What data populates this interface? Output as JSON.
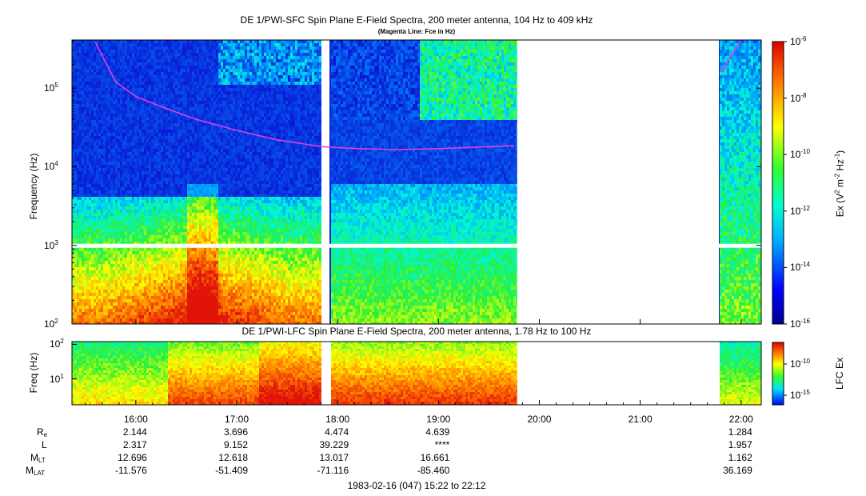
{
  "header": {
    "title": "DE 1/PWI-SFC  Spin Plane E-Field Spectra, 200 meter antenna, 104 Hz to 409 kHz",
    "subtitle": "(Magenta Line: Fce in Hz)"
  },
  "colors": {
    "background_spectrum": "#0a1fd0",
    "gyro_line": "#e040e0",
    "data_gap": "#ffffff"
  },
  "chart_data": [
    {
      "type": "heatmap",
      "title": "DE 1/PWI-SFC  Spin Plane E-Field Spectra, 200 meter antenna, 104 Hz to 409 kHz",
      "subtitle": "(Magenta Line: Fce in Hz)",
      "ylabel": "Frequency (Hz)",
      "yscale": "log",
      "ylim": [
        100,
        409000
      ],
      "yticks": [
        {
          "value": 100,
          "base": "10",
          "exp": "2"
        },
        {
          "value": 1000,
          "base": "10",
          "exp": "3"
        },
        {
          "value": 10000,
          "base": "10",
          "exp": "4"
        },
        {
          "value": 100000,
          "base": "10",
          "exp": "5"
        }
      ],
      "xlim_hours": [
        15.367,
        22.2
      ],
      "data_gaps_hours": [
        [
          17.84,
          17.92
        ],
        [
          19.78,
          21.78
        ]
      ],
      "colorbar": {
        "label_prefix": "Ex (V",
        "label_suffix": " m",
        "label_suffix2": " Hz",
        "label_end": ")",
        "sup1": "2",
        "sup2": "-2",
        "sup3": "-1",
        "scale": "log",
        "range": [
          1e-16,
          1e-06
        ],
        "ticks": [
          {
            "base": "10",
            "exp": "-6"
          },
          {
            "base": "10",
            "exp": "-8"
          },
          {
            "base": "10",
            "exp": "-10"
          },
          {
            "base": "10",
            "exp": "-12"
          },
          {
            "base": "10",
            "exp": "-14"
          },
          {
            "base": "10",
            "exp": "-16"
          }
        ]
      },
      "series": [
        {
          "name": "Fce in Hz",
          "x_hours": [
            15.6,
            15.8,
            16.0,
            16.3,
            16.6,
            17.0,
            17.4,
            17.84,
            18.2,
            18.6,
            19.0,
            19.4,
            19.75
          ],
          "y_hz": [
            380000,
            120000,
            78000,
            55000,
            40000,
            29000,
            22000,
            18000,
            17000,
            16500,
            17000,
            17800,
            18500
          ]
        },
        {
          "name": "Fce in Hz",
          "x_hours": [
            21.8,
            21.9,
            22.0
          ],
          "y_hz": [
            160000,
            260000,
            409000
          ]
        }
      ]
    },
    {
      "type": "heatmap",
      "title": "DE 1/PWI-LFC  Spin Plane E-Field Spectra, 200 meter antenna, 1.78 Hz to 100 Hz",
      "ylabel": "Freq (Hz)",
      "yscale": "log",
      "ylim": [
        1.78,
        120
      ],
      "yticks": [
        {
          "value": 100,
          "base": "10",
          "exp": "2"
        },
        {
          "value": 10,
          "base": "10",
          "exp": "1"
        }
      ],
      "colorbar": {
        "label": "LFC Ex",
        "scale": "log",
        "ticks": [
          {
            "base": "10",
            "exp": "-10"
          },
          {
            "base": "10",
            "exp": "-15"
          }
        ]
      }
    }
  ],
  "x_axis": {
    "ticks": [
      "16:00",
      "17:00",
      "18:00",
      "19:00",
      "20:00",
      "21:00",
      "22:00"
    ],
    "tick_hours": [
      16,
      17,
      18,
      19,
      20,
      21,
      22
    ]
  },
  "ephemeris": {
    "labels": [
      {
        "main": "R",
        "sub": "e"
      },
      {
        "main": "L",
        "sub": ""
      },
      {
        "main": "M",
        "sub": "LT"
      },
      {
        "main": "M",
        "sub": "LAT"
      }
    ],
    "columns": [
      {
        "hour": 16,
        "values": [
          "2.144",
          "2.317",
          "12.696",
          "-11.576"
        ]
      },
      {
        "hour": 17,
        "values": [
          "3.696",
          "9.152",
          "12.618",
          "-51.409"
        ]
      },
      {
        "hour": 18,
        "values": [
          "4.474",
          "39.229",
          "13.017",
          "-71.116"
        ]
      },
      {
        "hour": 19,
        "values": [
          "4.639",
          "****",
          "16.661",
          "-85.460"
        ]
      },
      {
        "hour": 22,
        "values": [
          "1.284",
          "1.957",
          "1.162",
          "36.169"
        ]
      }
    ]
  },
  "footer": "1983-02-16 (047) 15:22 to 22:12"
}
